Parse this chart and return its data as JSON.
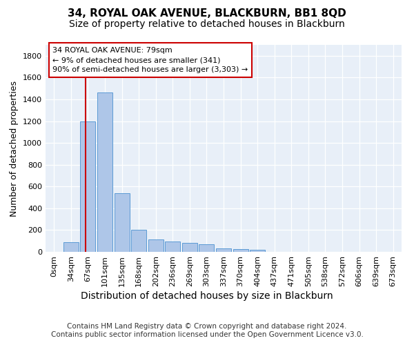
{
  "title": "34, ROYAL OAK AVENUE, BLACKBURN, BB1 8QD",
  "subtitle": "Size of property relative to detached houses in Blackburn",
  "dist_label": "Distribution of detached houses by size in Blackburn",
  "ylabel": "Number of detached properties",
  "categories": [
    "0sqm",
    "34sqm",
    "67sqm",
    "101sqm",
    "135sqm",
    "168sqm",
    "202sqm",
    "236sqm",
    "269sqm",
    "303sqm",
    "337sqm",
    "370sqm",
    "404sqm",
    "437sqm",
    "471sqm",
    "505sqm",
    "538sqm",
    "572sqm",
    "606sqm",
    "639sqm",
    "673sqm"
  ],
  "values": [
    0,
    90,
    1200,
    1460,
    540,
    200,
    115,
    95,
    80,
    70,
    30,
    25,
    22,
    0,
    0,
    0,
    0,
    0,
    0,
    0,
    0
  ],
  "bar_color": "#aec6e8",
  "bar_edge_color": "#5b9bd5",
  "annotation_text": "34 ROYAL OAK AVENUE: 79sqm\n← 9% of detached houses are smaller (341)\n90% of semi-detached houses are larger (3,303) →",
  "annotation_box_color": "#ffffff",
  "annotation_box_edge_color": "#cc0000",
  "red_line_x": 1.85,
  "ylim": [
    0,
    1900
  ],
  "yticks": [
    0,
    200,
    400,
    600,
    800,
    1000,
    1200,
    1400,
    1600,
    1800
  ],
  "plot_bg_color": "#e8eff8",
  "footer": "Contains HM Land Registry data © Crown copyright and database right 2024.\nContains public sector information licensed under the Open Government Licence v3.0.",
  "title_fontsize": 11,
  "subtitle_fontsize": 10,
  "dist_label_fontsize": 10,
  "ylabel_fontsize": 9,
  "tick_fontsize": 8,
  "footer_fontsize": 7.5
}
